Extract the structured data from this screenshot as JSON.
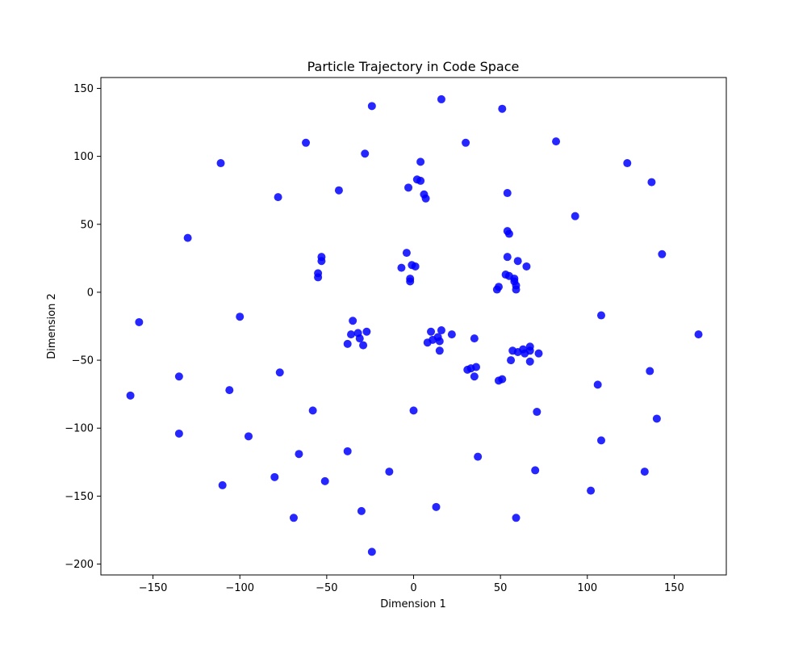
{
  "chart_data": {
    "type": "scatter",
    "title": "Particle Trajectory in Code Space",
    "xlabel": "Dimension 1",
    "ylabel": "Dimension 2",
    "xlim": [
      -180,
      180
    ],
    "ylim": [
      -208,
      158
    ],
    "xticks": [
      -150,
      -100,
      -50,
      0,
      50,
      100,
      150
    ],
    "yticks": [
      -200,
      -150,
      -100,
      -50,
      0,
      50,
      100,
      150
    ],
    "grid": false,
    "legend": "none",
    "marker_color": "#0000ff",
    "series": [
      {
        "points": [
          [
            -24,
            137
          ],
          [
            16,
            142
          ],
          [
            51,
            135
          ],
          [
            -62,
            110
          ],
          [
            -28,
            102
          ],
          [
            30,
            110
          ],
          [
            82,
            111
          ],
          [
            -111,
            95
          ],
          [
            4,
            96
          ],
          [
            123,
            95
          ],
          [
            -78,
            70
          ],
          [
            -43,
            75
          ],
          [
            -3,
            77
          ],
          [
            2,
            83
          ],
          [
            4,
            82
          ],
          [
            6,
            72
          ],
          [
            7,
            69
          ],
          [
            54,
            73
          ],
          [
            137,
            81
          ],
          [
            -130,
            40
          ],
          [
            93,
            56
          ],
          [
            54,
            45
          ],
          [
            55,
            43
          ],
          [
            -53,
            26
          ],
          [
            -53,
            23
          ],
          [
            -55,
            14
          ],
          [
            -55,
            11
          ],
          [
            -4,
            29
          ],
          [
            -7,
            18
          ],
          [
            -1,
            20
          ],
          [
            1,
            19
          ],
          [
            -2,
            10
          ],
          [
            -2,
            8
          ],
          [
            54,
            26
          ],
          [
            60,
            23
          ],
          [
            65,
            19
          ],
          [
            53,
            13
          ],
          [
            55,
            12
          ],
          [
            58,
            10
          ],
          [
            58,
            8
          ],
          [
            59,
            5
          ],
          [
            59,
            2
          ],
          [
            48,
            2
          ],
          [
            49,
            4
          ],
          [
            143,
            28
          ],
          [
            -158,
            -22
          ],
          [
            -100,
            -18
          ],
          [
            108,
            -17
          ],
          [
            164,
            -31
          ],
          [
            -35,
            -21
          ],
          [
            -36,
            -31
          ],
          [
            -32,
            -30
          ],
          [
            -31,
            -34
          ],
          [
            -27,
            -29
          ],
          [
            -29,
            -39
          ],
          [
            -38,
            -38
          ],
          [
            10,
            -29
          ],
          [
            16,
            -28
          ],
          [
            22,
            -31
          ],
          [
            11,
            -35
          ],
          [
            14,
            -33
          ],
          [
            15,
            -36
          ],
          [
            8,
            -37
          ],
          [
            15,
            -43
          ],
          [
            35,
            -34
          ],
          [
            57,
            -43
          ],
          [
            60,
            -44
          ],
          [
            63,
            -42
          ],
          [
            64,
            -45
          ],
          [
            67,
            -40
          ],
          [
            67,
            -43
          ],
          [
            72,
            -45
          ],
          [
            56,
            -50
          ],
          [
            67,
            -51
          ],
          [
            -135,
            -62
          ],
          [
            -77,
            -59
          ],
          [
            31,
            -57
          ],
          [
            33,
            -56
          ],
          [
            36,
            -55
          ],
          [
            35,
            -62
          ],
          [
            51,
            -64
          ],
          [
            49,
            -65
          ],
          [
            106,
            -68
          ],
          [
            136,
            -58
          ],
          [
            -163,
            -76
          ],
          [
            -106,
            -72
          ],
          [
            -58,
            -87
          ],
          [
            0,
            -87
          ],
          [
            71,
            -88
          ],
          [
            140,
            -93
          ],
          [
            -135,
            -104
          ],
          [
            -95,
            -106
          ],
          [
            108,
            -109
          ],
          [
            -66,
            -119
          ],
          [
            -38,
            -117
          ],
          [
            37,
            -121
          ],
          [
            -14,
            -132
          ],
          [
            70,
            -131
          ],
          [
            133,
            -132
          ],
          [
            -80,
            -136
          ],
          [
            -51,
            -139
          ],
          [
            -110,
            -142
          ],
          [
            102,
            -146
          ],
          [
            13,
            -158
          ],
          [
            -69,
            -166
          ],
          [
            -30,
            -161
          ],
          [
            59,
            -166
          ],
          [
            -24,
            -191
          ]
        ]
      }
    ]
  }
}
